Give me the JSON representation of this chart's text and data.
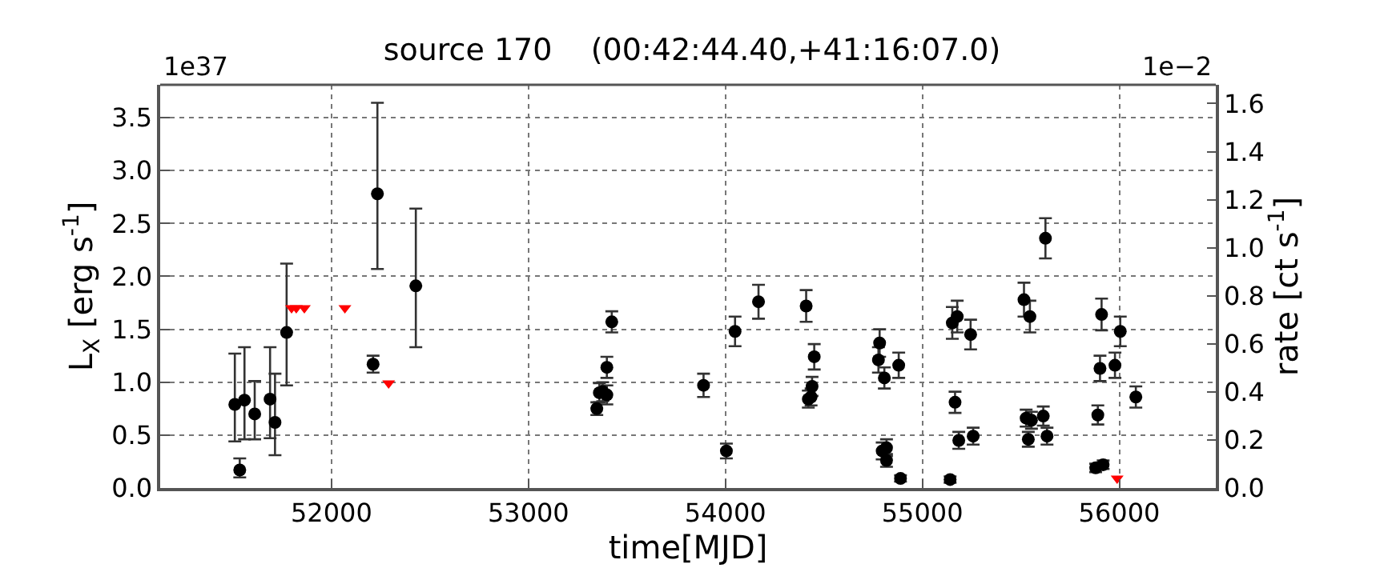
{
  "chart_data": {
    "type": "scatter",
    "title": "source 170    (00:42:44.40,+41:16:07.0)",
    "xlabel": "time[MJD]",
    "ylabel": "L$_{X}$ [erg s$^{-1}$]",
    "y2label": "rate [ct s$^{-1}$]",
    "annotations": [
      "1e37",
      "1e−2"
    ],
    "xlim": [
      51130,
      56490
    ],
    "xticks": [
      52000,
      53000,
      54000,
      55000,
      56000
    ],
    "ylim": [
      0,
      3.81
    ],
    "yticks": [
      {
        "value": 0,
        "label": "0.0"
      },
      {
        "value": 0.5,
        "label": "0.5"
      },
      {
        "value": 1,
        "label": "1.0"
      },
      {
        "value": 1.5,
        "label": "1.5"
      },
      {
        "value": 2,
        "label": "2.0"
      },
      {
        "value": 2.5,
        "label": "2.5"
      },
      {
        "value": 3,
        "label": "3.0"
      },
      {
        "value": 3.5,
        "label": "3.5"
      }
    ],
    "y2lim": [
      0,
      1.678
    ],
    "y2ticks": [
      {
        "value": 0,
        "label": "0.0"
      },
      {
        "value": 0.2,
        "label": "0.2"
      },
      {
        "value": 0.4,
        "label": "0.4"
      },
      {
        "value": 0.6,
        "label": "0.6"
      },
      {
        "value": 0.8,
        "label": "0.8"
      },
      {
        "value": 1.0,
        "label": "1.0"
      },
      {
        "value": 1.2,
        "label": "1.2"
      },
      {
        "value": 1.4,
        "label": "1.4"
      },
      {
        "value": 1.6,
        "label": "1.6"
      }
    ],
    "grid": true,
    "series": [
      {
        "marker": "circle",
        "color": "#000000",
        "x": [
          51509,
          51534,
          51558,
          51610,
          51688,
          51713,
          51772,
          52211,
          52233,
          52428,
          53347,
          53360,
          53377,
          53398,
          53398,
          53423,
          53889,
          54005,
          54049,
          54168,
          54410,
          54421,
          54435,
          54440,
          54451,
          54777,
          54783,
          54807,
          54796,
          54818,
          54818,
          54880,
          54889,
          55141,
          55152,
          55166,
          55177,
          55185,
          55245,
          55258,
          55516,
          55527,
          55538,
          55546,
          55554,
          55614,
          55625,
          55633,
          55880,
          55891,
          55902,
          55910,
          55918,
          55978,
          56005,
          56084
        ],
        "values": [
          0.79,
          0.17,
          0.83,
          0.7,
          0.84,
          0.62,
          1.47,
          1.17,
          2.78,
          1.91,
          0.75,
          0.9,
          0.91,
          0.88,
          1.14,
          1.57,
          0.97,
          0.35,
          1.48,
          1.76,
          1.72,
          0.84,
          0.86,
          0.96,
          1.24,
          1.21,
          1.37,
          1.04,
          0.35,
          0.38,
          0.26,
          1.16,
          0.09,
          0.08,
          1.56,
          0.81,
          1.62,
          0.45,
          1.45,
          0.49,
          1.78,
          0.66,
          0.46,
          1.62,
          0.64,
          0.68,
          2.36,
          0.49,
          0.19,
          0.69,
          1.13,
          1.64,
          0.22,
          1.16,
          1.48,
          0.86
        ],
        "errors": [
          [
            0.44,
            1.27
          ],
          [
            0.1,
            0.28
          ],
          [
            0.46,
            1.33
          ],
          [
            0.46,
            1.01
          ],
          [
            0.47,
            1.33
          ],
          [
            0.31,
            1.08
          ],
          [
            0.97,
            2.12
          ],
          0.08,
          [
            2.07,
            3.64
          ],
          [
            1.33,
            2.64
          ],
          0.06,
          0.09,
          0.09,
          0.09,
          0.1,
          0.1,
          0.11,
          0.07,
          0.14,
          0.16,
          0.15,
          0.08,
          0.08,
          0.09,
          0.12,
          0.12,
          0.13,
          0.1,
          0.08,
          0.08,
          0.06,
          0.12,
          0.03,
          0.03,
          0.15,
          0.1,
          0.15,
          0.08,
          0.14,
          0.08,
          0.16,
          0.08,
          0.07,
          0.15,
          0.08,
          0.09,
          0.19,
          0.08,
          0.04,
          0.09,
          0.12,
          0.15,
          0.04,
          0.12,
          0.14,
          0.1
        ]
      },
      {
        "marker": "triangle",
        "color": "#ff0000",
        "x": [
          51797,
          51821,
          51862,
          52068,
          52290,
          55989
        ],
        "values": [
          1.7,
          1.7,
          1.7,
          1.7,
          0.99,
          0.09
        ]
      }
    ]
  }
}
